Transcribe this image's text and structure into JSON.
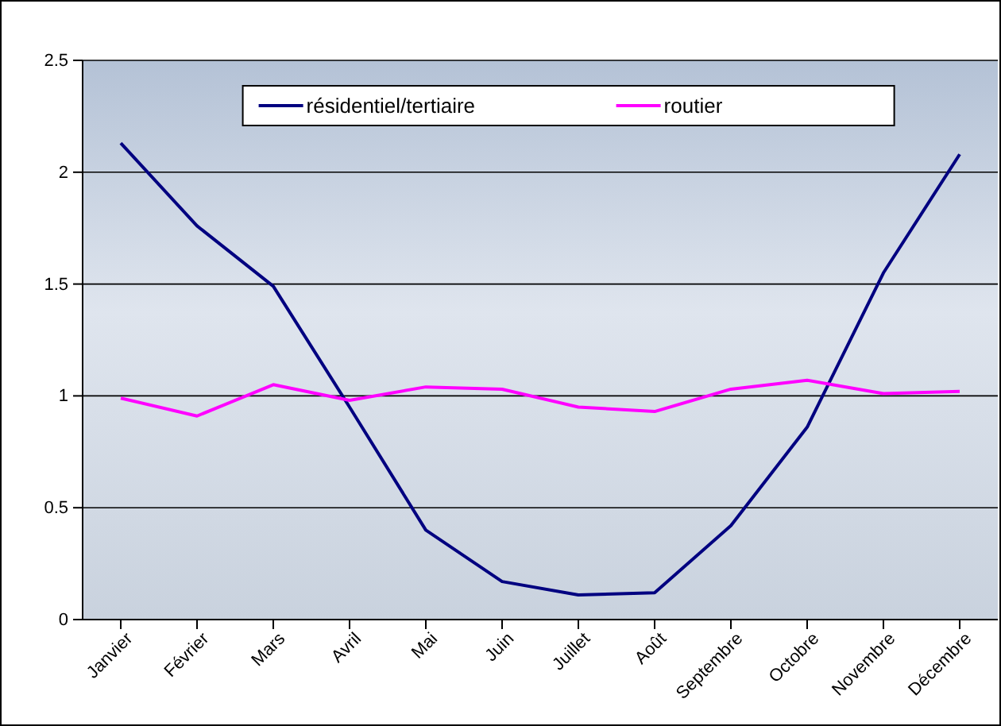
{
  "chart_data": {
    "type": "line",
    "categories": [
      "Janvier",
      "Février",
      "Mars",
      "Avril",
      "Mai",
      "Juin",
      "Juillet",
      "Août",
      "Septembre",
      "Octobre",
      "Novembre",
      "Décembre"
    ],
    "series": [
      {
        "name": "résidentiel/tertiaire",
        "color": "#000080",
        "values": [
          2.13,
          1.76,
          1.49,
          0.95,
          0.4,
          0.17,
          0.11,
          0.12,
          0.42,
          0.86,
          1.55,
          2.08
        ]
      },
      {
        "name": "routier",
        "color": "#ff00ff",
        "values": [
          0.99,
          0.91,
          1.05,
          0.98,
          1.04,
          1.03,
          0.95,
          0.93,
          1.03,
          1.07,
          1.01,
          1.02
        ]
      }
    ],
    "ylim": [
      0,
      2.5
    ],
    "yticks": [
      0,
      0.5,
      1,
      1.5,
      2,
      2.5
    ],
    "grid": "y",
    "legend": "top",
    "marker": "none",
    "line_style": "solid"
  }
}
